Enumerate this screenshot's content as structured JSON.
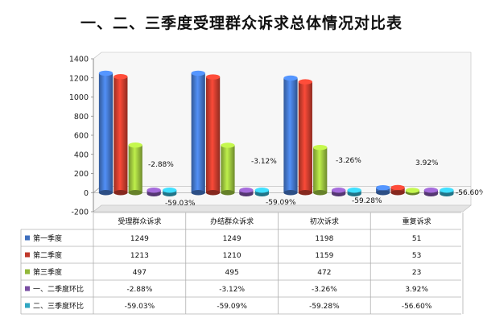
{
  "chart_data": {
    "type": "bar",
    "title": "一、二、三季度受理群众诉求总体情况对比表",
    "categories": [
      "受理群众诉求",
      "办结群众诉求",
      "初次诉求",
      "重复诉求"
    ],
    "ylim": [
      -200,
      1400
    ],
    "yticks": [
      -200,
      0,
      200,
      400,
      600,
      800,
      1000,
      1200,
      1400
    ],
    "grid": false,
    "legend": "bottom-table",
    "series": [
      {
        "name": "第一季度",
        "color": "#3f6fbe",
        "values": [
          1249,
          1249,
          1198,
          51
        ],
        "labels": [
          "1249",
          "1249",
          "1198",
          "51"
        ]
      },
      {
        "name": "第二季度",
        "color": "#c0392b",
        "values": [
          1213,
          1210,
          1159,
          53
        ],
        "labels": [
          "1213",
          "1210",
          "1159",
          "53"
        ]
      },
      {
        "name": "第三季度",
        "color": "#92b83a",
        "values": [
          497,
          495,
          472,
          23
        ],
        "labels": [
          "497",
          "495",
          "472",
          "23"
        ]
      },
      {
        "name": "一、二季度环比",
        "color": "#7a4fa3",
        "values": [
          -2.88,
          -3.12,
          -3.26,
          3.92
        ],
        "labels": [
          "-2.88%",
          "-3.12%",
          "-3.26%",
          "3.92%"
        ]
      },
      {
        "name": "二、三季度环比",
        "color": "#2fa6c2",
        "values": [
          -59.03,
          -59.09,
          -59.28,
          -56.6
        ],
        "labels": [
          "-59.03%",
          "-59.09%",
          "-59.28%",
          "-56.60%"
        ]
      }
    ]
  }
}
